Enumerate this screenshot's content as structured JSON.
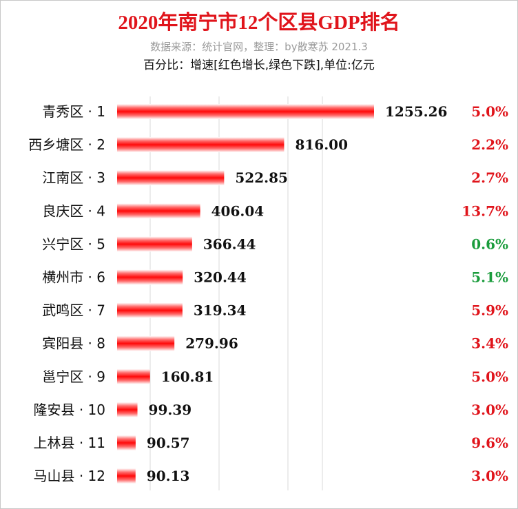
{
  "header": {
    "title": "2020年南宁市12个区县GDP排名",
    "source": "数据来源：统计官网，整理：by散寒苏  2021.3",
    "note": "百分比：增速[红色增长,绿色下跌],单位:亿元"
  },
  "colors": {
    "title": "#e0141b",
    "bar": "#ff1a1a",
    "growth_red": "#e0141b",
    "decline_green": "#1a9c3c",
    "grid": "#d9d9d9"
  },
  "chart_data": {
    "type": "bar",
    "orientation": "horizontal",
    "unit": "亿元",
    "categories": [
      "青秀区 · 1",
      "西乡塘区 · 2",
      "江南区 · 3",
      "良庆区 · 4",
      "兴宁区 · 5",
      "横州市 · 6",
      "武鸣区 · 7",
      "宾阳县 · 8",
      "邕宁区 · 9",
      "隆安县 · 10",
      "上林县 · 11",
      "马山县 · 12"
    ],
    "values": [
      1255.26,
      816.0,
      522.85,
      406.04,
      366.44,
      320.44,
      319.34,
      279.96,
      160.81,
      99.39,
      90.57,
      90.13
    ],
    "value_labels": [
      "1255.26",
      "816.00",
      "522.85",
      "406.04",
      "366.44",
      "320.44",
      "319.34",
      "279.96",
      "160.81",
      "99.39",
      "90.57",
      "90.13"
    ],
    "growth": [
      "5.0%",
      "2.2%",
      "2.7%",
      "13.7%",
      "0.6%",
      "5.1%",
      "5.9%",
      "3.4%",
      "5.0%",
      "3.0%",
      "9.6%",
      "3.0%"
    ],
    "growth_color": [
      "red",
      "red",
      "red",
      "red",
      "green",
      "green",
      "red",
      "red",
      "red",
      "red",
      "red",
      "red"
    ],
    "grid": true,
    "legend": "none"
  }
}
